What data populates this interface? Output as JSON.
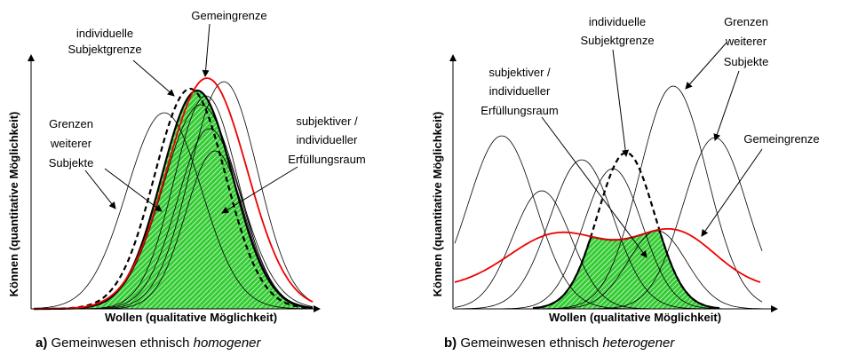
{
  "panel_a": {
    "annotations": {
      "gemeingrenze": "Gemeingrenze",
      "subjektgrenze": [
        "individuelle",
        "Subjektgrenze"
      ],
      "weitere": [
        "Grenzen",
        "weiterer",
        "Subjekte"
      ],
      "raum": [
        "subjektiver /",
        "individueller",
        "Erfüllungsraum"
      ]
    },
    "y_axis_label": "Können (quantitative Möglichkeit)",
    "x_axis_label": "Wollen (qualitative Möglichkeit)",
    "caption": {
      "label": "a)",
      "text": "Gemeinwesen ethnisch",
      "emphasis": "homogener"
    }
  },
  "panel_b": {
    "annotations": {
      "gemeingrenze": "Gemeingrenze",
      "subjektgrenze": [
        "individuelle",
        "Subjektgrenze"
      ],
      "weitere": [
        "Grenzen",
        "weiterer",
        "Subjekte"
      ],
      "raum": [
        "subjektiver /",
        "individueller",
        "Erfüllungsraum"
      ]
    },
    "y_axis_label": "Können (quantitative Möglichkeit)",
    "x_axis_label": "Wollen (qualitative Möglichkeit)",
    "caption": {
      "label": "b)",
      "text": "Gemeinwesen ethnisch",
      "emphasis": "heterogener"
    }
  }
}
